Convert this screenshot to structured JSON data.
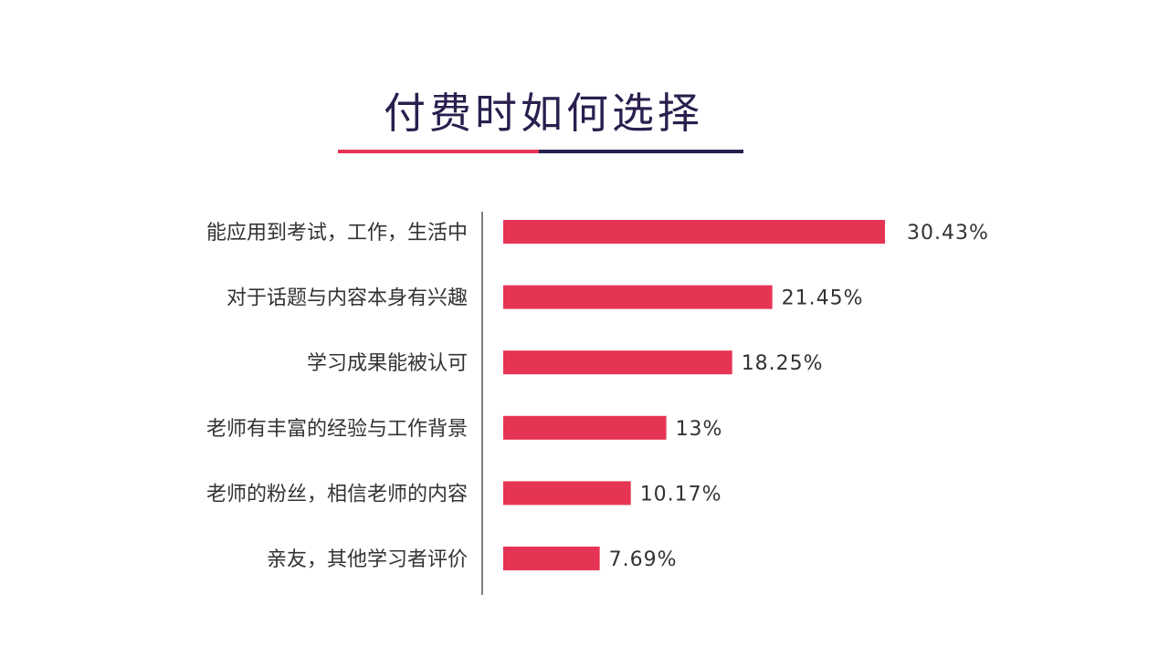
{
  "title": "付费时如何选择",
  "colors": {
    "bar": "#e63455",
    "accent_pink": "#e63455",
    "accent_navy": "#2a1f4e",
    "axis": "#555555"
  },
  "chart_data": {
    "type": "bar",
    "orientation": "horizontal",
    "title": "付费时如何选择",
    "categories": [
      "能应用到考试，工作，生活中",
      "对于话题与内容本身有兴趣",
      "学习成果能被认可",
      "老师有丰富的经验与工作背景",
      "老师的粉丝，相信老师的内容",
      "亲友，其他学习者评价"
    ],
    "values": [
      30.43,
      21.45,
      18.25,
      13,
      10.17,
      7.69
    ],
    "value_labels": [
      "30.43%",
      "21.45%",
      "18.25%",
      "13%",
      "10.17%",
      "7.69%"
    ],
    "unit": "%",
    "xlim": [
      0,
      30.43
    ],
    "grid": false,
    "legend": "none"
  }
}
